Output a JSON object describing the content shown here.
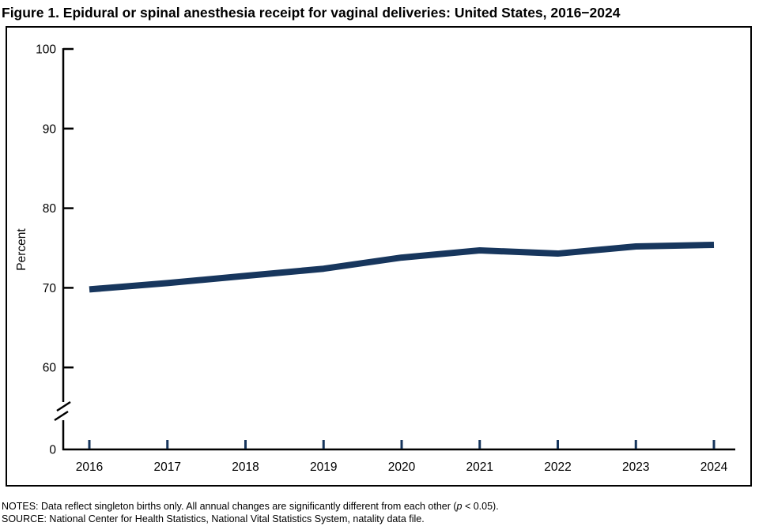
{
  "title": "Figure 1. Epidural or spinal anesthesia receipt for vaginal deliveries: United States, 2016−2024",
  "footnotes": {
    "notes_prefix": "NOTES: Data reflect singleton births only. All annual changes are significantly different from each other (",
    "notes_italic": "p",
    "notes_suffix": " < 0.05).",
    "source": "SOURCE: National Center for Health Statistics, National Vital Statistics System, natality data file."
  },
  "chart_data": {
    "type": "line",
    "title": "Figure 1. Epidural or spinal anesthesia receipt for vaginal deliveries: United States, 2016−2024",
    "categories": [
      "2016",
      "2017",
      "2018",
      "2019",
      "2020",
      "2021",
      "2022",
      "2023",
      "2024"
    ],
    "series": [
      {
        "name": "Epidural or spinal anesthesia receipt for vaginal deliveries",
        "values": [
          69.8,
          70.6,
          71.5,
          72.4,
          73.8,
          74.7,
          74.3,
          75.2,
          75.4
        ]
      }
    ],
    "xlabel": "",
    "ylabel": "Percent",
    "y_ticks": [
      100,
      90,
      80,
      70,
      60,
      0
    ],
    "ylim": [
      0,
      100
    ],
    "axis_break_between": [
      0,
      60
    ],
    "grid": false,
    "legend": "none",
    "line_color": "#17365d",
    "axis_color": "#000000",
    "x_tick_color": "#17365d"
  }
}
